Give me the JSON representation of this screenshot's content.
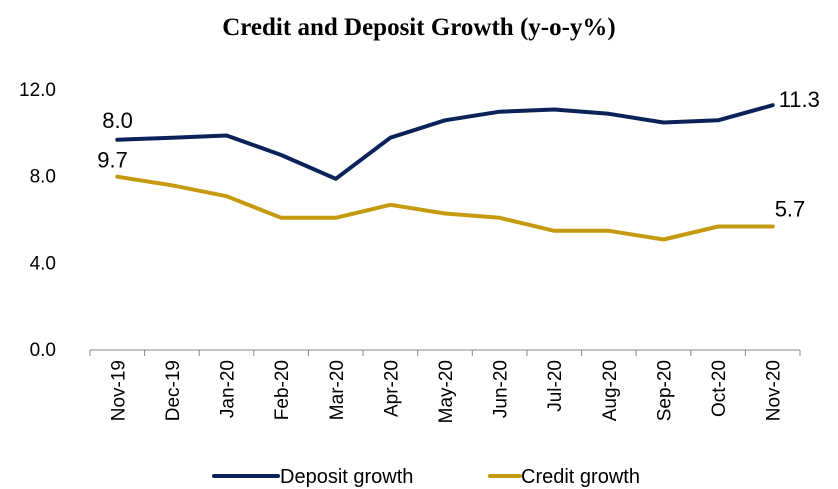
{
  "chart_data": {
    "type": "line",
    "title": "Credit and Deposit Growth (y-o-y%)",
    "xlabel": "",
    "ylabel": "",
    "ylim": [
      0,
      12
    ],
    "y_ticks": [
      "0.0",
      "4.0",
      "8.0",
      "12.0"
    ],
    "y_tick_values": [
      0,
      4,
      8,
      12
    ],
    "categories": [
      "Nov-19",
      "Dec-19",
      "Jan-20",
      "Feb-20",
      "Mar-20",
      "Apr-20",
      "May-20",
      "Jun-20",
      "Jul-20",
      "Aug-20",
      "Sep-20",
      "Oct-20",
      "Nov-20"
    ],
    "grid": false,
    "legend_position": "bottom",
    "series": [
      {
        "name": "Deposit growth",
        "color": "#0b2259",
        "values": [
          9.7,
          9.8,
          9.9,
          9.0,
          7.9,
          9.8,
          10.6,
          11.0,
          11.1,
          10.9,
          10.5,
          10.6,
          11.3
        ]
      },
      {
        "name": "Credit growth",
        "color": "#c59a0f",
        "values": [
          8.0,
          7.6,
          7.1,
          6.1,
          6.1,
          6.7,
          6.3,
          6.1,
          5.5,
          5.5,
          5.1,
          5.7,
          5.7
        ]
      }
    ],
    "annotations": [
      {
        "text": "8.0"
      },
      {
        "text": "9.7"
      },
      {
        "text": "11.3"
      },
      {
        "text": "5.7"
      }
    ]
  }
}
